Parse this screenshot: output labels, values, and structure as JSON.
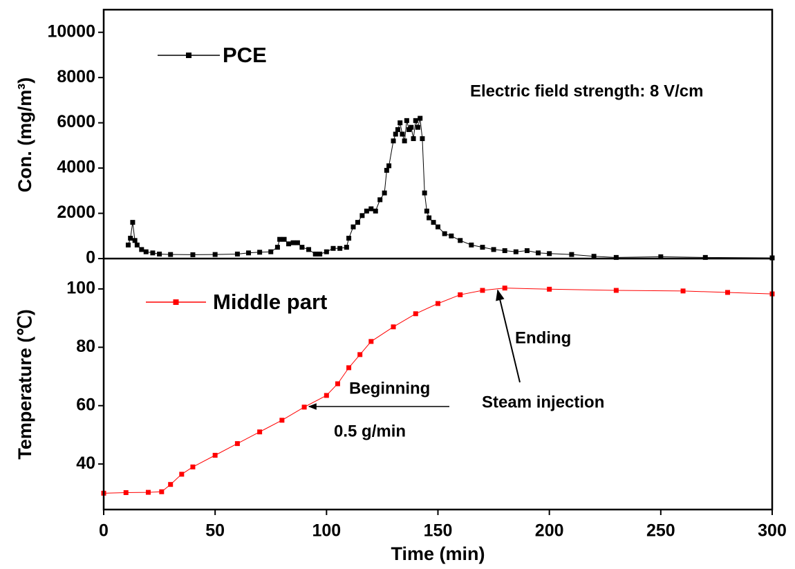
{
  "chart_data": [
    {
      "type": "line",
      "ylabel": "Con. (mg/m³)",
      "xlim": [
        0,
        300
      ],
      "ylim": [
        0,
        11000
      ],
      "yticks": [
        0,
        2000,
        4000,
        6000,
        8000,
        10000
      ],
      "annotations": [
        "Electric field strength: 8 V/cm"
      ],
      "series": [
        {
          "name": "PCE",
          "color": "#000000",
          "x": [
            11,
            12,
            13,
            14,
            15,
            17,
            19,
            22,
            25,
            30,
            40,
            50,
            60,
            65,
            70,
            75,
            78,
            79,
            81,
            83,
            85,
            87,
            89,
            92,
            95,
            97,
            100,
            103,
            106,
            109,
            110,
            112,
            114,
            116,
            118,
            120,
            122,
            124,
            126,
            127,
            128,
            130,
            131,
            132,
            133,
            134,
            135,
            136,
            137,
            138,
            139,
            140,
            141,
            142,
            143,
            144,
            145,
            146,
            148,
            150,
            153,
            156,
            160,
            165,
            170,
            175,
            180,
            185,
            190,
            195,
            200,
            210,
            220,
            230,
            250,
            270,
            300
          ],
          "values": [
            600,
            900,
            1600,
            800,
            600,
            400,
            300,
            250,
            200,
            180,
            170,
            180,
            200,
            250,
            280,
            300,
            500,
            850,
            850,
            650,
            700,
            700,
            500,
            400,
            200,
            200,
            300,
            450,
            450,
            500,
            900,
            1400,
            1600,
            1900,
            2100,
            2200,
            2100,
            2600,
            2900,
            3900,
            4100,
            5200,
            5500,
            5700,
            6000,
            5500,
            5200,
            6100,
            5700,
            5800,
            5300,
            6100,
            5800,
            6200,
            5300,
            2900,
            2100,
            1800,
            1600,
            1400,
            1100,
            1000,
            800,
            600,
            500,
            400,
            350,
            300,
            350,
            250,
            220,
            180,
            100,
            50,
            80,
            50,
            30
          ]
        }
      ]
    },
    {
      "type": "line",
      "xlabel": "Time (min)",
      "ylabel": "Temperature (℃)",
      "xlim": [
        0,
        300
      ],
      "ylim": [
        24.4,
        110.4
      ],
      "xticks": [
        0,
        50,
        100,
        150,
        200,
        250,
        300
      ],
      "yticks": [
        40,
        60,
        80,
        100
      ],
      "annotations": [
        "Ending",
        "Steam injection",
        "Beginning",
        "0.5 g/min"
      ],
      "series": [
        {
          "name": "Middle part",
          "color": "#ff0000",
          "x": [
            0,
            10,
            20,
            26,
            30,
            35,
            40,
            50,
            60,
            70,
            80,
            90,
            100,
            105,
            110,
            115,
            120,
            130,
            140,
            150,
            160,
            170,
            180,
            200,
            230,
            260,
            280,
            300
          ],
          "values": [
            30,
            30.2,
            30.3,
            30.5,
            33,
            36.5,
            39,
            43,
            47,
            51,
            55,
            59.5,
            63.5,
            67.5,
            73,
            77.5,
            82,
            87,
            91.5,
            95,
            98,
            99.5,
            100.3,
            99.9,
            99.5,
            99.3,
            98.8,
            98.3
          ]
        }
      ]
    }
  ]
}
